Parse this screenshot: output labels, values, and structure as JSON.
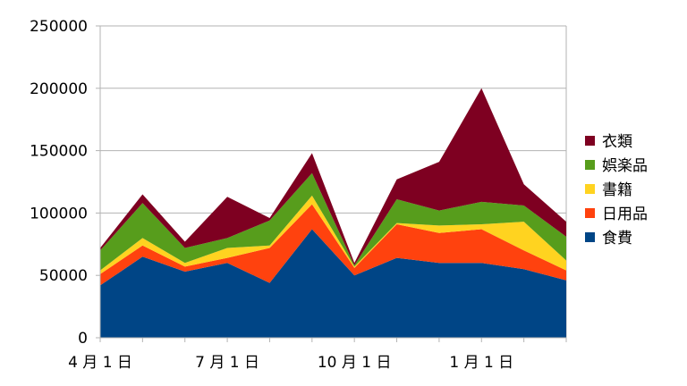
{
  "chart_data": {
    "type": "area",
    "stacked": true,
    "title": "",
    "xlabel": "",
    "ylabel": "",
    "ylim": [
      0,
      250000
    ],
    "y_ticks": [
      0,
      50000,
      100000,
      150000,
      200000,
      250000
    ],
    "y_tick_labels": [
      "0",
      "50000",
      "100000",
      "150000",
      "200000",
      "250000"
    ],
    "x_ticks": [
      {
        "at": 0,
        "label": "4 月 1 日"
      },
      {
        "at": 3,
        "label": "7 月 1 日"
      },
      {
        "at": 6,
        "label": "10 月 1 日"
      },
      {
        "at": 9,
        "label": "1 月 1 日"
      }
    ],
    "x_count": 12,
    "grid": true,
    "legend_position": "right",
    "series": [
      {
        "name": "食費",
        "color": "#004586",
        "values": [
          42000,
          65000,
          53000,
          60000,
          44000,
          87000,
          50000,
          64000,
          60000,
          60000,
          55000,
          46000
        ]
      },
      {
        "name": "日用品",
        "color": "#ff420e",
        "values": [
          9000,
          9000,
          4000,
          4000,
          28000,
          20000,
          6000,
          27000,
          24000,
          27000,
          15000,
          8000
        ]
      },
      {
        "name": "書籍",
        "color": "#ffd320",
        "values": [
          3000,
          6000,
          3000,
          8000,
          2000,
          7000,
          1000,
          1000,
          6000,
          4000,
          23000,
          8000
        ]
      },
      {
        "name": "娯楽品",
        "color": "#579d1c",
        "values": [
          16000,
          28000,
          12000,
          8000,
          20000,
          18000,
          1000,
          19000,
          12000,
          18000,
          13000,
          19000
        ]
      },
      {
        "name": "衣類",
        "color": "#7e0021",
        "values": [
          2000,
          7000,
          5000,
          33000,
          2000,
          16000,
          2000,
          16000,
          39000,
          91000,
          17000,
          12000
        ]
      }
    ]
  }
}
